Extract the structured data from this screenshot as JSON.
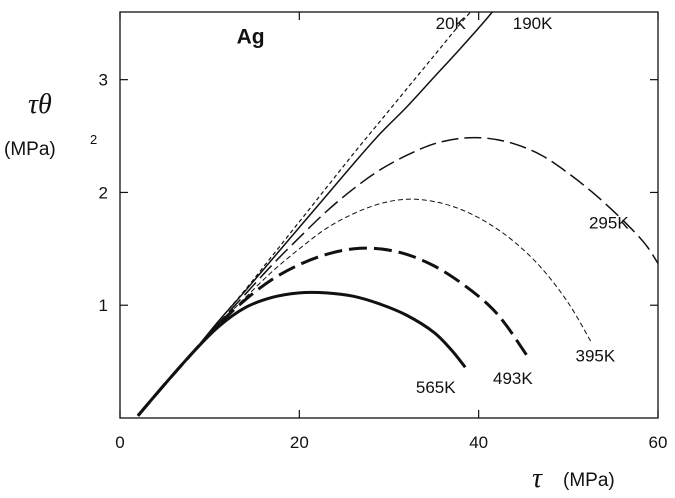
{
  "chart_data": {
    "type": "line",
    "title": "",
    "panel_label": "Ag",
    "xlabel": {
      "symbol": "τ",
      "unit": "(MPa)"
    },
    "ylabel": {
      "symbol": "τθ",
      "unit": "(MPa)",
      "unit_exponent": "2"
    },
    "xlim": [
      0,
      60
    ],
    "ylim": [
      0,
      3.6
    ],
    "xticks": [
      {
        "value": 0,
        "label": "0"
      },
      {
        "value": 20,
        "label": "20"
      },
      {
        "value": 40,
        "label": "40"
      },
      {
        "value": 60,
        "label": "60"
      }
    ],
    "yticks": [
      {
        "value": 1,
        "label": "1"
      },
      {
        "value": 2,
        "label": "2"
      },
      {
        "value": 3,
        "label": "3"
      }
    ],
    "grid": false,
    "legend": "none",
    "series": [
      {
        "name": "20K",
        "style": "dashed-fine",
        "points": [
          [
            2,
            0.02
          ],
          [
            5,
            0.3
          ],
          [
            8,
            0.57
          ],
          [
            11,
            0.86
          ],
          [
            14,
            1.14
          ],
          [
            17,
            1.44
          ],
          [
            20,
            1.74
          ],
          [
            23,
            2.04
          ],
          [
            26,
            2.34
          ],
          [
            29,
            2.63
          ],
          [
            32,
            2.92
          ],
          [
            35,
            3.21
          ],
          [
            38,
            3.5
          ],
          [
            40.2,
            3.7
          ]
        ]
      },
      {
        "name": "190K",
        "style": "solid",
        "points": [
          [
            2,
            0.02
          ],
          [
            5,
            0.3
          ],
          [
            8,
            0.57
          ],
          [
            11,
            0.86
          ],
          [
            14,
            1.13
          ],
          [
            17,
            1.41
          ],
          [
            20,
            1.69
          ],
          [
            23,
            1.97
          ],
          [
            26,
            2.25
          ],
          [
            29,
            2.52
          ],
          [
            32,
            2.76
          ],
          [
            35,
            3.02
          ],
          [
            38,
            3.28
          ],
          [
            41,
            3.55
          ],
          [
            42.5,
            3.7
          ]
        ]
      },
      {
        "name": "295K",
        "style": "dashed-long",
        "points": [
          [
            2,
            0.02
          ],
          [
            5,
            0.3
          ],
          [
            8,
            0.57
          ],
          [
            11,
            0.84
          ],
          [
            14,
            1.1
          ],
          [
            17,
            1.36
          ],
          [
            20,
            1.6
          ],
          [
            23,
            1.83
          ],
          [
            26,
            2.03
          ],
          [
            29,
            2.2
          ],
          [
            32,
            2.33
          ],
          [
            35,
            2.43
          ],
          [
            38,
            2.48
          ],
          [
            41,
            2.48
          ],
          [
            44,
            2.43
          ],
          [
            47,
            2.33
          ],
          [
            50,
            2.17
          ],
          [
            53,
            1.98
          ],
          [
            56,
            1.76
          ],
          [
            58.5,
            1.55
          ],
          [
            60,
            1.37
          ]
        ]
      },
      {
        "name": "395K",
        "style": "dashed-short",
        "points": [
          [
            2,
            0.02
          ],
          [
            5,
            0.3
          ],
          [
            8,
            0.57
          ],
          [
            11,
            0.83
          ],
          [
            14,
            1.07
          ],
          [
            17,
            1.3
          ],
          [
            20,
            1.5
          ],
          [
            23,
            1.68
          ],
          [
            26,
            1.81
          ],
          [
            29,
            1.9
          ],
          [
            32,
            1.94
          ],
          [
            35,
            1.92
          ],
          [
            38,
            1.85
          ],
          [
            41,
            1.73
          ],
          [
            44,
            1.56
          ],
          [
            47,
            1.33
          ],
          [
            50,
            1.02
          ],
          [
            52.5,
            0.68
          ]
        ]
      },
      {
        "name": "493K",
        "style": "dashed-bold",
        "points": [
          [
            2,
            0.02
          ],
          [
            5,
            0.3
          ],
          [
            8,
            0.57
          ],
          [
            11,
            0.83
          ],
          [
            14,
            1.05
          ],
          [
            17,
            1.23
          ],
          [
            20,
            1.36
          ],
          [
            23,
            1.45
          ],
          [
            26,
            1.5
          ],
          [
            29,
            1.5
          ],
          [
            32,
            1.45
          ],
          [
            35,
            1.35
          ],
          [
            38,
            1.2
          ],
          [
            41,
            1.01
          ],
          [
            43,
            0.83
          ],
          [
            45.5,
            0.54
          ]
        ]
      },
      {
        "name": "565K",
        "style": "solid-bold",
        "points": [
          [
            2,
            0.02
          ],
          [
            5,
            0.3
          ],
          [
            8,
            0.57
          ],
          [
            11,
            0.81
          ],
          [
            14,
            0.98
          ],
          [
            17,
            1.07
          ],
          [
            20,
            1.11
          ],
          [
            23,
            1.11
          ],
          [
            26,
            1.08
          ],
          [
            29,
            1.01
          ],
          [
            32,
            0.91
          ],
          [
            35,
            0.76
          ],
          [
            37,
            0.6
          ],
          [
            38.5,
            0.45
          ]
        ]
      }
    ],
    "curve_labels": [
      {
        "text": "20K",
        "x": 35.2,
        "y": 3.45
      },
      {
        "text": "190K",
        "x": 43.8,
        "y": 3.45
      },
      {
        "text": "295K",
        "x": 52.3,
        "y": 1.68
      },
      {
        "text": "395K",
        "x": 50.8,
        "y": 0.5
      },
      {
        "text": "493K",
        "x": 41.6,
        "y": 0.3
      },
      {
        "text": "565K",
        "x": 33.0,
        "y": 0.22
      }
    ],
    "panel_label_pos": {
      "x": 13,
      "y": 3.32
    }
  }
}
